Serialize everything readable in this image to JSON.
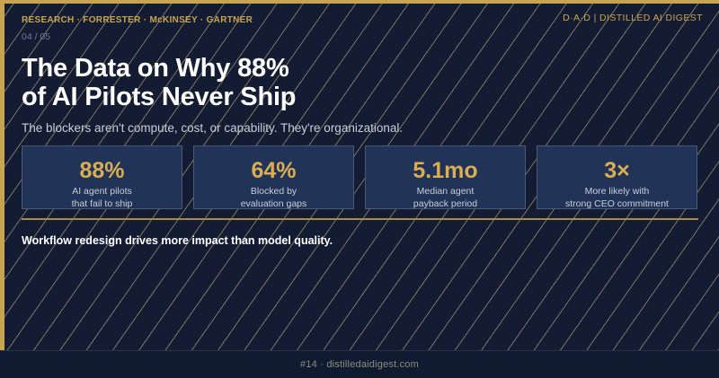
{
  "header": {
    "kicker": "RESEARCH · FORRESTER · McKINSEY · GARTNER",
    "page": "04 / 05",
    "brand": "D·A·D  |  DISTILLED AI DIGEST"
  },
  "title": {
    "line1": "The Data on Why 88%",
    "line2": "of AI Pilots Never Ship"
  },
  "subtitle": "The blockers aren't compute, cost, or capability. They're organizational.",
  "stats": [
    {
      "value": "88%",
      "label_line1": "AI agent pilots",
      "label_line2": "that fail to ship"
    },
    {
      "value": "64%",
      "label_line1": "Blocked by",
      "label_line2": "evaluation gaps"
    },
    {
      "value": "5.1mo",
      "label_line1": "Median agent",
      "label_line2": "payback period"
    },
    {
      "value": "3×",
      "label_line1": "More likely with",
      "label_line2": "strong CEO commitment"
    }
  ],
  "takeaway": "Workflow redesign drives more impact than model quality.",
  "footer": "#14 · distilledaidigest.com",
  "colors": {
    "background": "#131c33",
    "accent": "#c9a450",
    "card": "#223358",
    "value": "#d9ad52"
  }
}
